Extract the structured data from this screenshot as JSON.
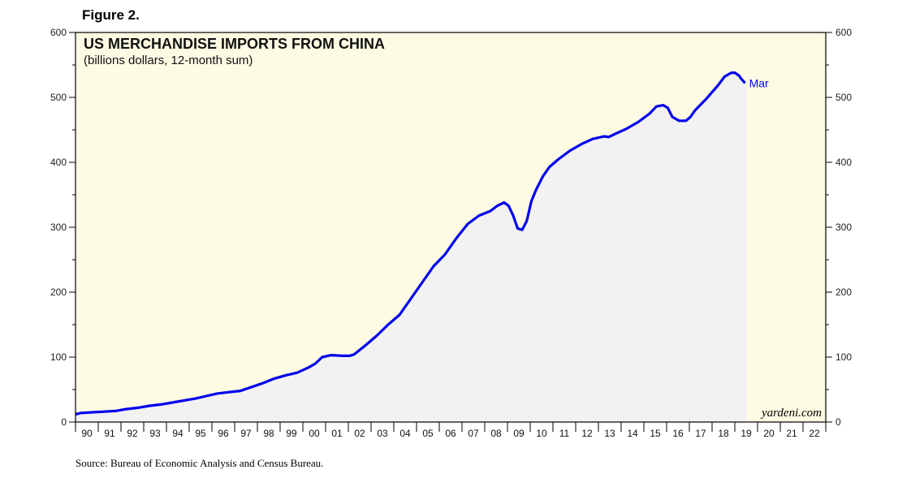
{
  "figure_label": "Figure 2.",
  "source": "Source: Bureau of Economic Analysis and Census Bureau.",
  "watermark": "yardeni.com",
  "colors": {
    "plot_bg": "#fdfbe3",
    "area_fill": "#f2f2f2",
    "line": "#0000ee",
    "frame": "#000000"
  },
  "chart_data": {
    "type": "area",
    "title": "US MERCHANDISE IMPORTS FROM CHINA",
    "subtitle": "(billions dollars, 12-month sum)",
    "end_label": "Mar",
    "ylim": [
      0,
      600
    ],
    "y_ticks": [
      0,
      100,
      200,
      300,
      400,
      500,
      600
    ],
    "x_range": [
      1989.75,
      2022.75
    ],
    "x_tick_labels": [
      "90",
      "91",
      "92",
      "93",
      "94",
      "95",
      "96",
      "97",
      "98",
      "99",
      "00",
      "01",
      "02",
      "03",
      "04",
      "05",
      "06",
      "07",
      "08",
      "09",
      "10",
      "11",
      "12",
      "13",
      "14",
      "15",
      "16",
      "17",
      "18",
      "19",
      "20",
      "21",
      "22"
    ],
    "grid": false,
    "series": [
      {
        "x": [
          1989.75,
          1990.0,
          1990.5,
          1991.0,
          1991.5,
          1992.0,
          1992.5,
          1993.0,
          1993.5,
          1994.0,
          1994.5,
          1995.0,
          1995.5,
          1996.0,
          1996.5,
          1997.0,
          1997.5,
          1998.0,
          1998.5,
          1999.0,
          1999.5,
          2000.0,
          2000.3,
          2000.6,
          2001.0,
          2001.5,
          2001.8,
          2002.0,
          2002.5,
          2003.0,
          2003.5,
          2004.0,
          2004.5,
          2005.0,
          2005.5,
          2006.0,
          2006.5,
          2007.0,
          2007.5,
          2008.0,
          2008.3,
          2008.6,
          2008.8,
          2009.0,
          2009.2,
          2009.4,
          2009.6,
          2009.8,
          2010.0,
          2010.3,
          2010.6,
          2011.0,
          2011.5,
          2012.0,
          2012.5,
          2013.0,
          2013.2,
          2013.5,
          2014.0,
          2014.5,
          2015.0,
          2015.3,
          2015.6,
          2015.8,
          2016.0,
          2016.3,
          2016.6,
          2016.8,
          2017.0,
          2017.5,
          2018.0,
          2018.3,
          2018.6,
          2018.75,
          2018.95,
          2019.0,
          2019.2
        ],
        "values": [
          12,
          14,
          15,
          16,
          17,
          20,
          22,
          25,
          27,
          30,
          33,
          36,
          40,
          44,
          46,
          48,
          54,
          60,
          67,
          72,
          76,
          84,
          90,
          100,
          103,
          102,
          102,
          104,
          118,
          133,
          150,
          165,
          190,
          215,
          240,
          258,
          283,
          305,
          318,
          325,
          333,
          338,
          333,
          318,
          298,
          296,
          310,
          340,
          357,
          378,
          393,
          405,
          418,
          428,
          436,
          440,
          439,
          444,
          452,
          462,
          475,
          486,
          488,
          484,
          470,
          464,
          464,
          470,
          480,
          498,
          518,
          532,
          538,
          538,
          533,
          530,
          522
        ]
      }
    ]
  }
}
